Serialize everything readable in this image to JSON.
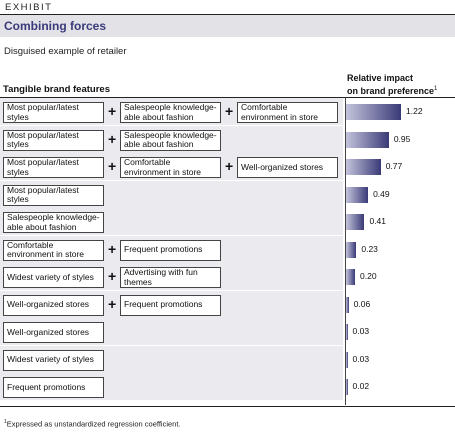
{
  "exhibit_label": "EXHIBIT",
  "title": "Combining forces",
  "subtitle": "Disguised example of retailer",
  "left_header": "Tangible brand features",
  "right_header_line1": "Relative impact",
  "right_header_line2": "on brand preference",
  "right_header_mark": "1",
  "footnote_mark": "1",
  "footnote": "Expressed as unstandardized regression coefficient.",
  "colors": {
    "bar_dark": "#3a3a78",
    "bar_light": "#c4c4dc",
    "title": "#3a3a7a",
    "row_bg": "#ebebef"
  },
  "chart_data": {
    "type": "bar",
    "categories": [
      "Most popular/latest styles + Salespeople knowledge-able about fashion + Comfortable environment in store",
      "Most popular/latest styles + Salespeople knowledge-able about fashion",
      "Most popular/latest styles + Comfortable environment in store + Well-organized stores",
      "Most popular/latest styles",
      "Salespeople knowledge-able about fashion",
      "Comfortable environment in store + Frequent promotions",
      "Widest variety of styles + Advertising with fun themes",
      "Well-organized stores + Frequent promotions",
      "Well-organized stores",
      "Widest variety of styles",
      "Frequent promotions"
    ],
    "values": [
      1.22,
      0.95,
      0.77,
      0.49,
      0.41,
      0.23,
      0.2,
      0.06,
      0.03,
      0.03,
      0.02
    ],
    "value_labels": [
      "1.22",
      "0.95",
      "0.77",
      "0.49",
      "0.41",
      "0.23",
      "0.20",
      "0.06",
      "0.03",
      "0.03",
      "0.02"
    ],
    "ylim": [
      0,
      1.22
    ],
    "rows": [
      {
        "features": [
          "Most popular/latest styles",
          "Salespeople knowledge-able about fashion",
          "Comfortable environment in store"
        ],
        "value": 1.22,
        "label": "1.22"
      },
      {
        "features": [
          "Most popular/latest styles",
          "Salespeople knowledge-able about fashion"
        ],
        "value": 0.95,
        "label": "0.95"
      },
      {
        "features": [
          "Most popular/latest styles",
          "Comfortable environment in store",
          "Well-organized stores"
        ],
        "value": 0.77,
        "label": "0.77"
      },
      {
        "features": [
          "Most popular/latest styles"
        ],
        "value": 0.49,
        "label": "0.49"
      },
      {
        "features": [
          "Salespeople knowledge-able about fashion"
        ],
        "value": 0.41,
        "label": "0.41"
      },
      {
        "features": [
          "Comfortable environment in store",
          "Frequent promotions"
        ],
        "value": 0.23,
        "label": "0.23"
      },
      {
        "features": [
          "Widest variety of styles",
          "Advertising with fun themes"
        ],
        "value": 0.2,
        "label": "0.20"
      },
      {
        "features": [
          "Well-organized stores",
          "Frequent promotions"
        ],
        "value": 0.06,
        "label": "0.06"
      },
      {
        "features": [
          "Well-organized stores"
        ],
        "value": 0.03,
        "label": "0.03"
      },
      {
        "features": [
          "Widest variety of styles"
        ],
        "value": 0.03,
        "label": "0.03"
      },
      {
        "features": [
          "Frequent promotions"
        ],
        "value": 0.02,
        "label": "0.02"
      }
    ]
  }
}
